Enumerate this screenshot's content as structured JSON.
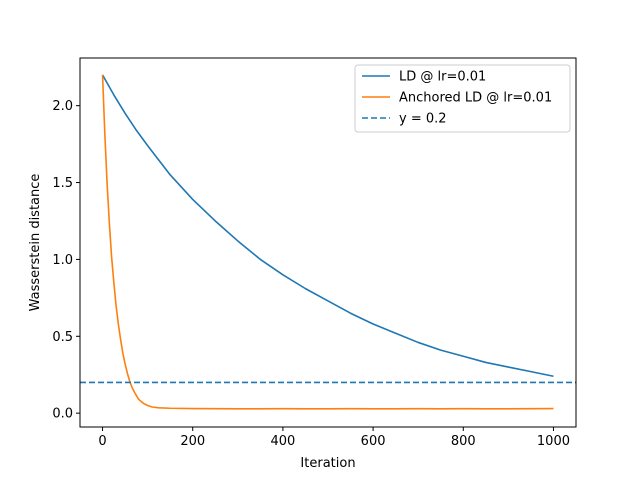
{
  "chart_data": {
    "type": "line",
    "title": "",
    "xlabel": "Iteration",
    "ylabel": "Wasserstein distance",
    "xlim": [
      -50,
      1050
    ],
    "ylim": [
      -0.09,
      2.31
    ],
    "xticks": [
      0,
      200,
      400,
      600,
      800,
      1000
    ],
    "xtick_labels": [
      "0",
      "200",
      "400",
      "600",
      "800",
      "1000"
    ],
    "yticks": [
      0.0,
      0.5,
      1.0,
      1.5,
      2.0
    ],
    "ytick_labels": [
      "0.0",
      "0.5",
      "1.0",
      "1.5",
      "2.0"
    ],
    "grid": false,
    "legend_position": "top-right",
    "series": [
      {
        "name": "LD @ lr=0.01",
        "color": "#1f77b4",
        "style": "solid",
        "x": [
          0,
          25,
          50,
          75,
          100,
          150,
          200,
          250,
          300,
          350,
          400,
          450,
          500,
          550,
          600,
          650,
          700,
          750,
          800,
          850,
          900,
          950,
          1000
        ],
        "y": [
          2.2,
          2.07,
          1.95,
          1.84,
          1.74,
          1.55,
          1.39,
          1.25,
          1.12,
          1.0,
          0.9,
          0.81,
          0.73,
          0.65,
          0.58,
          0.52,
          0.46,
          0.41,
          0.37,
          0.33,
          0.3,
          0.27,
          0.24
        ]
      },
      {
        "name": "Anchored LD @ lr=0.01",
        "color": "#ff7f0e",
        "style": "solid",
        "x": [
          0,
          5,
          10,
          15,
          20,
          25,
          30,
          35,
          40,
          45,
          50,
          55,
          60,
          65,
          70,
          80,
          90,
          100,
          110,
          125,
          150,
          200,
          250,
          300,
          350,
          400,
          450,
          500,
          550,
          600,
          650,
          700,
          750,
          800,
          850,
          900,
          950,
          1000
        ],
        "y": [
          2.2,
          1.82,
          1.5,
          1.24,
          1.02,
          0.85,
          0.7,
          0.58,
          0.48,
          0.39,
          0.32,
          0.26,
          0.21,
          0.17,
          0.14,
          0.09,
          0.065,
          0.05,
          0.04,
          0.035,
          0.032,
          0.03,
          0.029,
          0.028,
          0.028,
          0.029,
          0.028,
          0.028,
          0.029,
          0.028,
          0.028,
          0.029,
          0.028,
          0.029,
          0.028,
          0.028,
          0.029,
          0.03
        ]
      },
      {
        "name": "y = 0.2",
        "color": "#1f77b4",
        "style": "dashed",
        "y_constant": 0.2
      }
    ]
  }
}
